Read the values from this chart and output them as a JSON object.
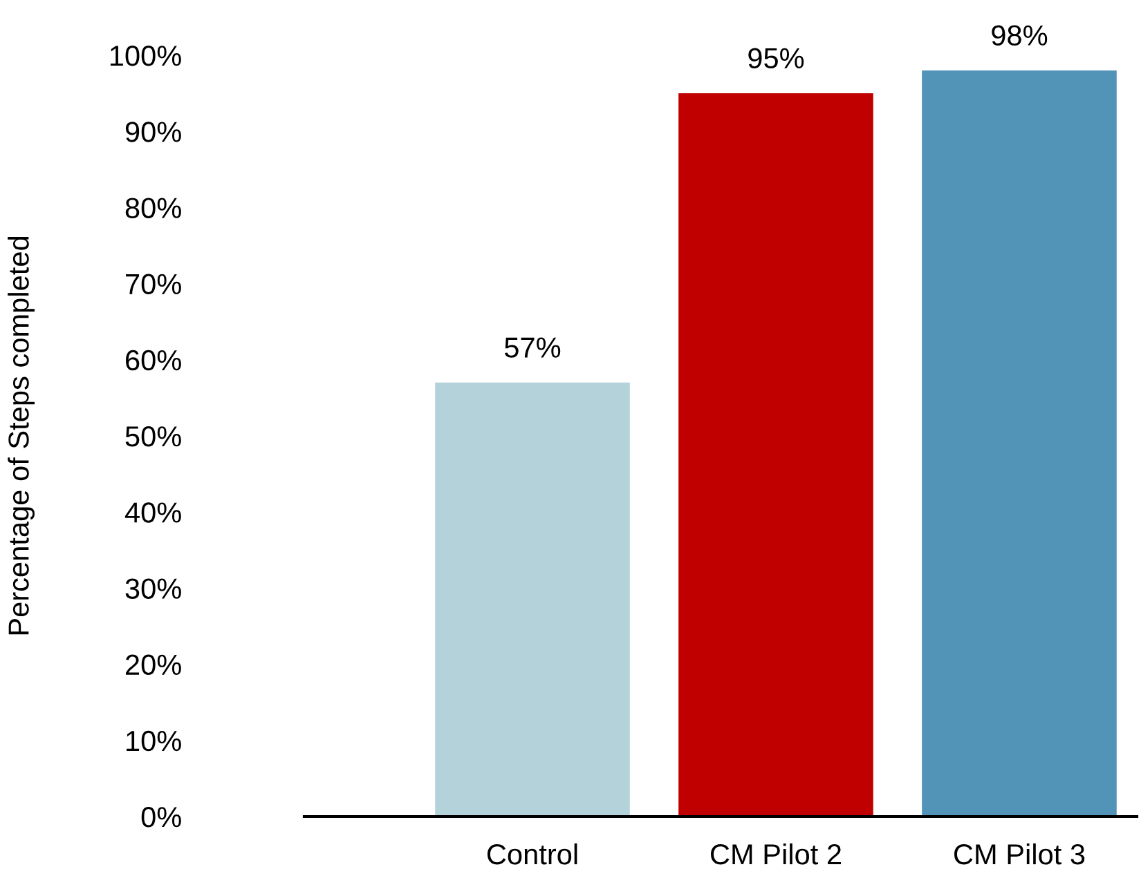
{
  "chart_data": {
    "type": "bar",
    "ylabel": "Percentage of Steps completed",
    "categories": [
      "Control",
      "CM Pilot 2",
      "CM Pilot 3"
    ],
    "values": [
      57,
      95,
      98
    ],
    "colors": [
      "#b4d2da",
      "#c00000",
      "#5293b8"
    ],
    "value_labels": [
      "57%",
      "95%",
      "98%"
    ],
    "ylim": [
      0,
      100
    ],
    "yticks": [
      {
        "value": 0,
        "label": "0%"
      },
      {
        "value": 10,
        "label": "10%"
      },
      {
        "value": 20,
        "label": "20%"
      },
      {
        "value": 30,
        "label": "30%"
      },
      {
        "value": 40,
        "label": "40%"
      },
      {
        "value": 50,
        "label": "50%"
      },
      {
        "value": 60,
        "label": "60%"
      },
      {
        "value": 70,
        "label": "70%"
      },
      {
        "value": 80,
        "label": "80%"
      },
      {
        "value": 90,
        "label": "90%"
      },
      {
        "value": 100,
        "label": "100%"
      }
    ],
    "grid": false,
    "legend": false
  }
}
